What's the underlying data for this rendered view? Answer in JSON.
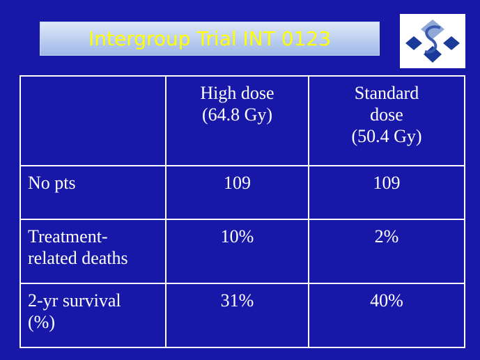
{
  "header": {
    "title": "Intergroup Trial INT 0123"
  },
  "table": {
    "columns": [
      [
        "High dose",
        "(64.8 Gy)"
      ],
      [
        "Standard",
        "dose",
        "(50.4 Gy)"
      ]
    ],
    "rows": [
      [
        [
          "No pts"
        ],
        "109",
        "109"
      ],
      [
        [
          "Treatment-",
          "related deaths"
        ],
        "10%",
        "2%"
      ],
      [
        [
          "2-yr survival",
          "(%)"
        ],
        "31%",
        "40%"
      ]
    ]
  }
}
